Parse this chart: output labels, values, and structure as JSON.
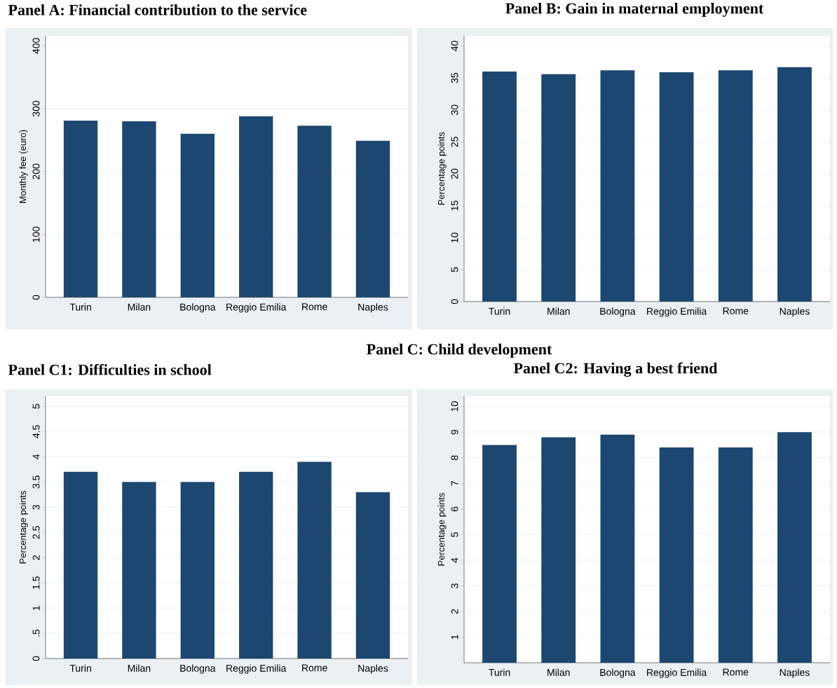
{
  "chart_data": [
    {
      "type": "bar",
      "title": "Panel A: Financial contribution to the service",
      "ylabel": "Monthly fee (euro)",
      "categories": [
        "Turin",
        "Milan",
        "Bologna",
        "Reggio Emilia",
        "Rome",
        "Naples"
      ],
      "values": [
        281,
        280,
        260,
        288,
        273,
        249
      ],
      "color": "#1c4770",
      "ylim": [
        0,
        416
      ],
      "yticks": [
        0,
        100,
        200,
        300,
        400
      ],
      "grid": "y"
    },
    {
      "type": "bar",
      "title": "Panel B: Gain in maternal employment",
      "ylabel": "Percentage points",
      "categories": [
        "Turin",
        "Milan",
        "Bologna",
        "Reggio Emilia",
        "Rome",
        "Naples"
      ],
      "values": [
        36.0,
        35.6,
        36.2,
        35.9,
        36.2,
        36.7
      ],
      "color": "#1c4770",
      "ylim": [
        0,
        41.6
      ],
      "yticks": [
        0,
        5,
        10,
        15,
        20,
        25,
        30,
        35,
        40
      ],
      "grid": "y"
    },
    {
      "type": "bar",
      "title": "Panel C1: Difficulties in school",
      "ylabel": "Percentage points",
      "annotations": [
        "Panel C: Child development"
      ],
      "categories": [
        "Turin",
        "Milan",
        "Bologna",
        "Reggio Emilia",
        "Rome",
        "Naples"
      ],
      "values": [
        3.7,
        3.5,
        3.5,
        3.7,
        3.9,
        3.3
      ],
      "color": "#1c4770",
      "ylim": [
        0,
        5.2
      ],
      "yticks": [
        0,
        {
          "value": 0.5,
          "label": ".5"
        },
        1,
        1.5,
        2,
        2.5,
        3,
        3.5,
        4,
        4.5,
        5
      ],
      "grid": "y"
    },
    {
      "type": "bar",
      "title": "Panel C2: Having a best friend",
      "ylabel": "Percentage points",
      "categories": [
        "Turin",
        "Milan",
        "Bologna",
        "Reggio Emilia",
        "Rome",
        "Naples"
      ],
      "values": [
        8.5,
        8.8,
        8.9,
        8.4,
        8.4,
        9.0
      ],
      "color": "#1c4770",
      "ylim": [
        0,
        10.4
      ],
      "yticks": [
        1,
        2,
        3,
        4,
        5,
        6,
        7,
        8,
        9,
        10
      ],
      "grid": "y"
    }
  ]
}
